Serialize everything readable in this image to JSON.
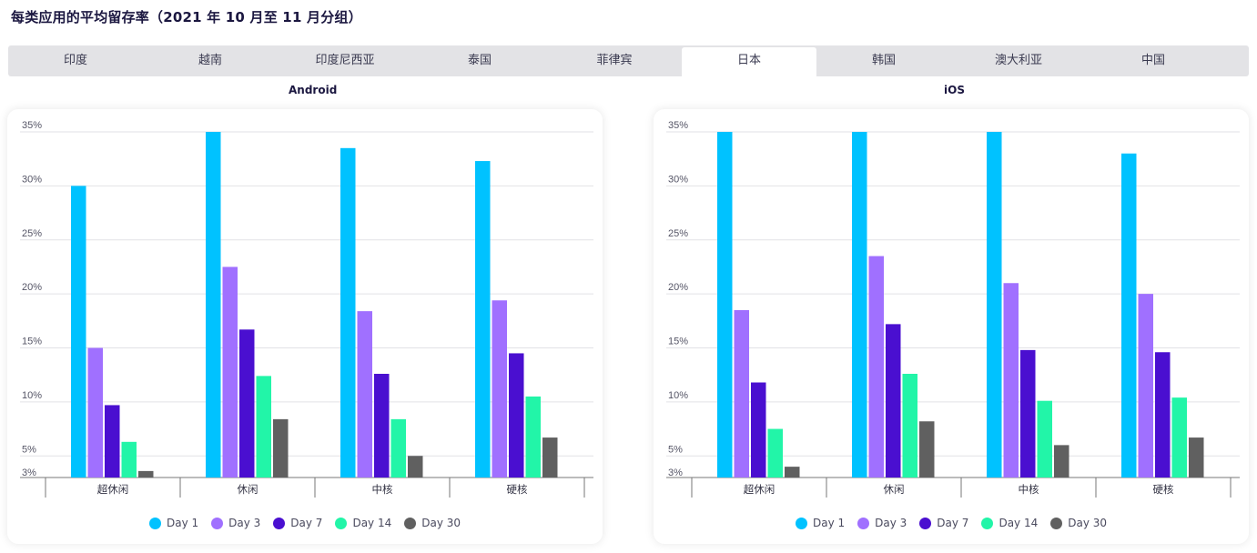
{
  "page_title": "每类应用的平均留存率（2021 年 10 月至 11 月分组）",
  "tabs": [
    {
      "label": "印度",
      "active": false
    },
    {
      "label": "越南",
      "active": false
    },
    {
      "label": "印度尼西亚",
      "active": false
    },
    {
      "label": "泰国",
      "active": false
    },
    {
      "label": "菲律宾",
      "active": false
    },
    {
      "label": "日本",
      "active": true
    },
    {
      "label": "韩国",
      "active": false
    },
    {
      "label": "澳大利亚",
      "active": false
    },
    {
      "label": "中国",
      "active": false
    }
  ],
  "colors": {
    "day1": "#00c2ff",
    "day3": "#a070ff",
    "day7": "#4a0fd0",
    "day14": "#22f5a8",
    "day30": "#606060"
  },
  "chart_data": [
    {
      "type": "bar",
      "title": "Android",
      "categories": [
        "超休闲",
        "休闲",
        "中核",
        "硬核"
      ],
      "y_ticks": [
        "3%",
        "5%",
        "10%",
        "15%",
        "20%",
        "25%",
        "30%",
        "35%"
      ],
      "ylim": [
        3,
        35
      ],
      "grid": true,
      "legend_position": "bottom",
      "series": [
        {
          "name": "Day 1",
          "color": "#00c2ff",
          "values": [
            30.0,
            35.0,
            33.5,
            32.3
          ]
        },
        {
          "name": "Day 3",
          "color": "#a070ff",
          "values": [
            15.0,
            22.5,
            18.4,
            19.4
          ]
        },
        {
          "name": "Day 7",
          "color": "#4a0fd0",
          "values": [
            9.7,
            16.7,
            12.6,
            14.5
          ]
        },
        {
          "name": "Day 14",
          "color": "#22f5a8",
          "values": [
            6.3,
            12.4,
            8.4,
            10.5
          ]
        },
        {
          "name": "Day 30",
          "color": "#606060",
          "values": [
            3.6,
            8.4,
            5.0,
            6.7
          ]
        }
      ]
    },
    {
      "type": "bar",
      "title": "iOS",
      "categories": [
        "超休闲",
        "休闲",
        "中核",
        "硬核"
      ],
      "y_ticks": [
        "3%",
        "5%",
        "10%",
        "15%",
        "20%",
        "25%",
        "30%",
        "35%"
      ],
      "ylim": [
        3,
        35
      ],
      "grid": true,
      "legend_position": "bottom",
      "series": [
        {
          "name": "Day 1",
          "color": "#00c2ff",
          "values": [
            35.0,
            35.0,
            35.0,
            33.0
          ]
        },
        {
          "name": "Day 3",
          "color": "#a070ff",
          "values": [
            18.5,
            23.5,
            21.0,
            20.0
          ]
        },
        {
          "name": "Day 7",
          "color": "#4a0fd0",
          "values": [
            11.8,
            17.2,
            14.8,
            14.6
          ]
        },
        {
          "name": "Day 14",
          "color": "#22f5a8",
          "values": [
            7.5,
            12.6,
            10.1,
            10.4
          ]
        },
        {
          "name": "Day 30",
          "color": "#606060",
          "values": [
            4.0,
            8.2,
            6.0,
            6.7
          ]
        }
      ]
    }
  ]
}
